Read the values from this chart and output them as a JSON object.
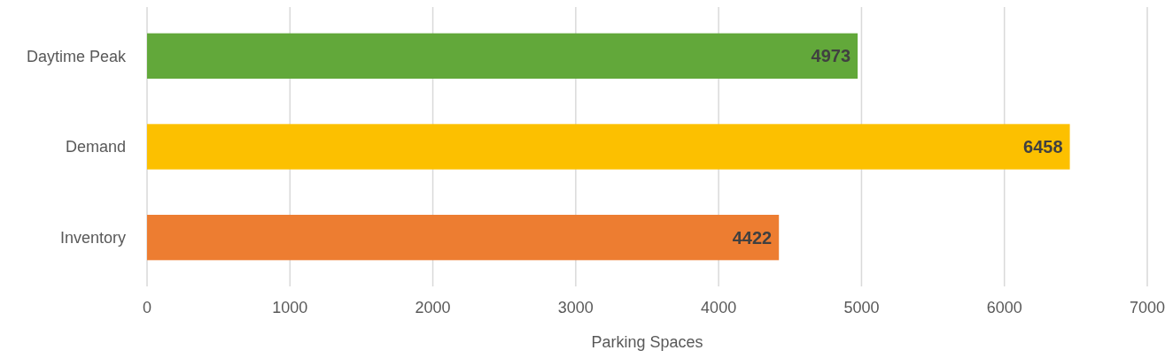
{
  "chart_data": {
    "type": "bar",
    "orientation": "horizontal",
    "categories": [
      "Daytime Peak",
      "Demand",
      "Inventory"
    ],
    "values": [
      4973,
      6458,
      4422
    ],
    "colors": [
      "#62a83a",
      "#fcc000",
      "#ed7d31"
    ],
    "xlabel": "Parking Spaces",
    "xlim": [
      0,
      7000
    ],
    "xticks": [
      0,
      1000,
      2000,
      3000,
      4000,
      5000,
      6000,
      7000
    ],
    "grid": "x",
    "data_labels": true
  }
}
